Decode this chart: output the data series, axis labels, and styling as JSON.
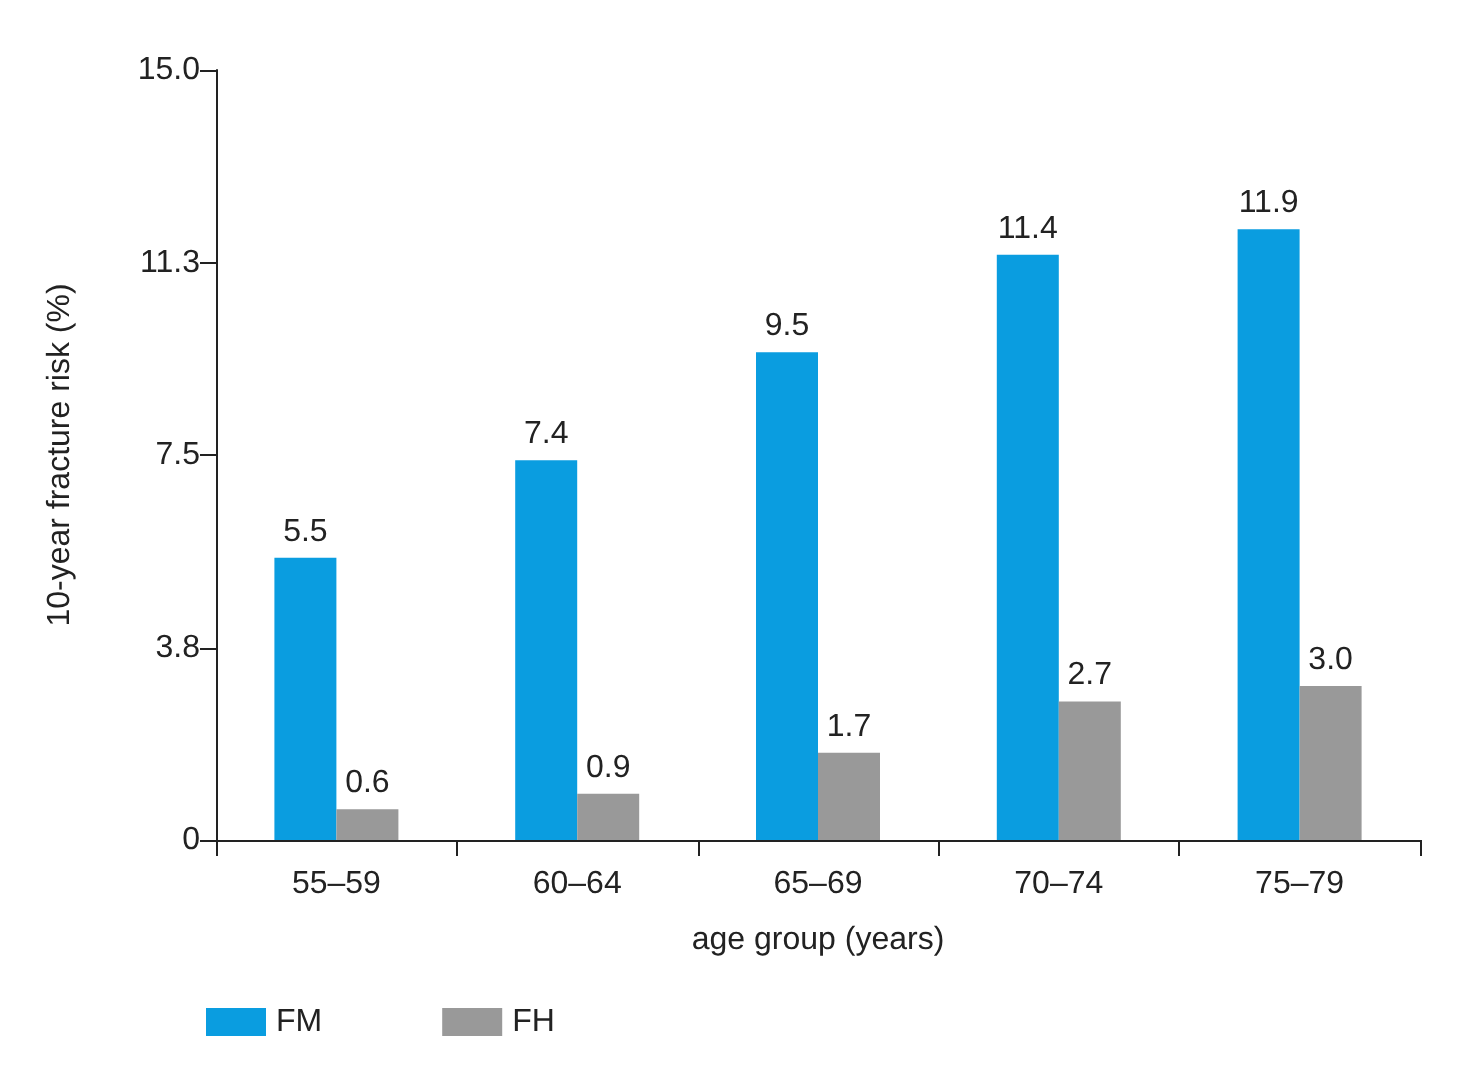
{
  "chart_data": {
    "type": "bar",
    "xlabel": "age group (years)",
    "ylabel": "10-year fracture risk (%)",
    "categories": [
      "55–59",
      "60–64",
      "65–69",
      "70–74",
      "75–79"
    ],
    "series": [
      {
        "name": "FM",
        "color": "#0a9de0",
        "values": [
          5.5,
          7.4,
          9.5,
          11.4,
          11.9
        ],
        "value_labels": [
          "5.5",
          "7.4",
          "9.5",
          "11.4",
          "11.9"
        ]
      },
      {
        "name": "FH",
        "color": "#999999",
        "values": [
          0.6,
          0.9,
          1.7,
          2.7,
          3.0
        ],
        "value_labels": [
          "0.6",
          "0.9",
          "1.7",
          "2.7",
          "3.0"
        ]
      }
    ],
    "ylim": [
      0,
      15
    ],
    "yticks": [
      0,
      {
        "value": 3.75,
        "label": "3.8"
      },
      {
        "value": 7.5,
        "label": "7.5"
      },
      {
        "value": 11.25,
        "label": "11.3"
      },
      {
        "value": 15,
        "label": "15.0"
      }
    ],
    "grid": false,
    "legend": "bottom left"
  }
}
